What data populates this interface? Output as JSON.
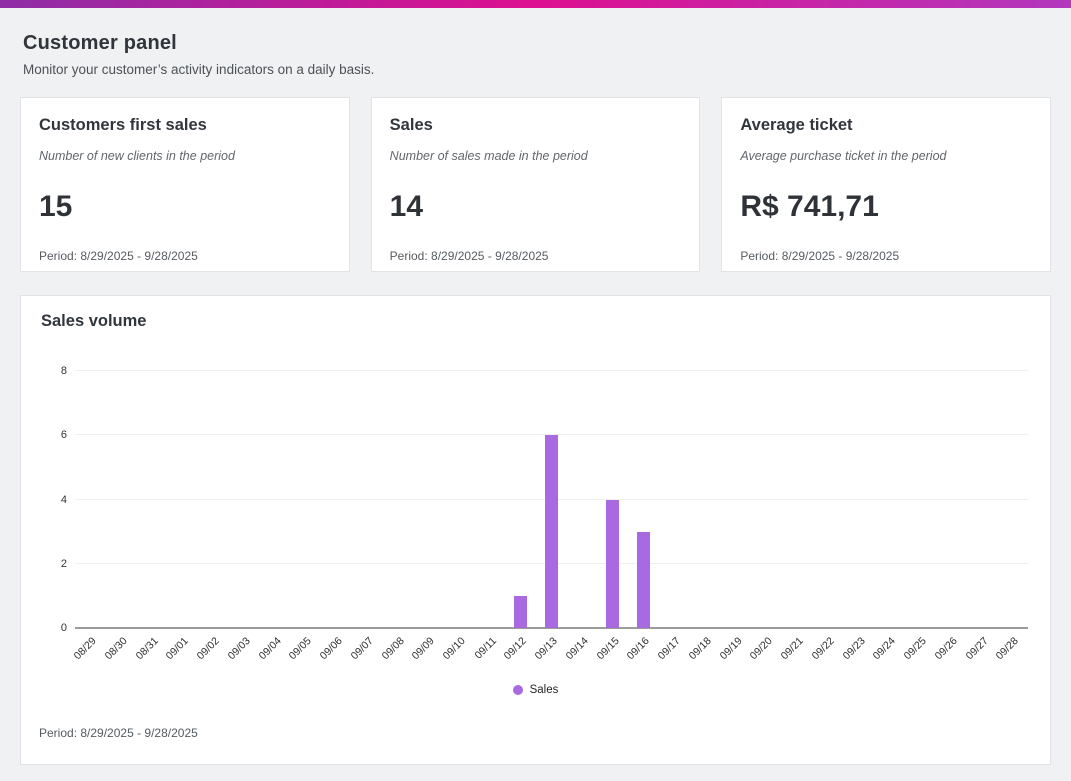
{
  "page": {
    "background": "#f0f1f3",
    "topbar_gradient": [
      "#8f2da6",
      "#dd1090",
      "#b238bd"
    ]
  },
  "header": {
    "title": "Customer panel",
    "subtitle": "Monitor your customer’s activity indicators on a daily basis."
  },
  "cards": [
    {
      "title": "Customers first sales",
      "description": "Number of new clients in the period",
      "value": "15",
      "period": "Period: 8/29/2025 - 9/28/2025"
    },
    {
      "title": "Sales",
      "description": "Number of sales made in the period",
      "value": "14",
      "period": "Period: 8/29/2025 - 9/28/2025"
    },
    {
      "title": "Average ticket",
      "description": "Average purchase ticket in the period",
      "value": "R$ 741,71",
      "period": "Period: 8/29/2025 - 9/28/2025"
    }
  ],
  "chart_card": {
    "title": "Sales volume",
    "period": "Period: 8/29/2025 - 9/28/2025"
  },
  "chart_data": {
    "type": "bar",
    "title": "Sales volume",
    "categories": [
      "08/29",
      "08/30",
      "08/31",
      "09/01",
      "09/02",
      "09/03",
      "09/04",
      "09/05",
      "09/06",
      "09/07",
      "09/08",
      "09/09",
      "09/10",
      "09/11",
      "09/12",
      "09/13",
      "09/14",
      "09/15",
      "09/16",
      "09/17",
      "09/18",
      "09/19",
      "09/20",
      "09/21",
      "09/22",
      "09/23",
      "09/24",
      "09/25",
      "09/26",
      "09/27",
      "09/28"
    ],
    "series": [
      {
        "name": "Sales",
        "values": [
          0,
          0,
          0,
          0,
          0,
          0,
          0,
          0,
          0,
          0,
          0,
          0,
          0,
          0,
          1,
          6,
          0,
          4,
          3,
          0,
          0,
          0,
          0,
          0,
          0,
          0,
          0,
          0,
          0,
          0,
          0
        ]
      }
    ],
    "xlabel": "",
    "ylabel": "",
    "ylim": [
      0,
      8
    ],
    "yticks": [
      0,
      2,
      4,
      6,
      8
    ],
    "x_label_rotation": -45,
    "grid": true,
    "legend_position": "bottom",
    "bar_color": "#a969e0"
  }
}
